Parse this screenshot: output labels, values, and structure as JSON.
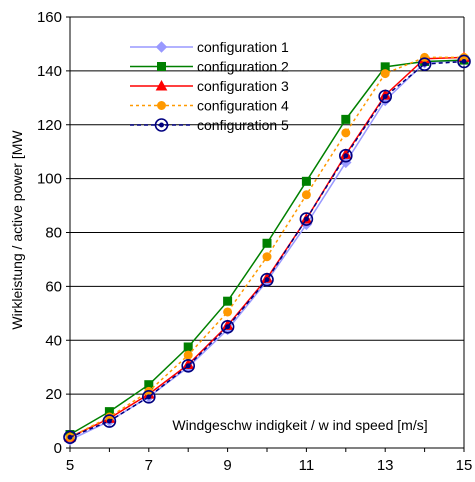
{
  "chart_data": {
    "type": "line",
    "xlabel": "Windgeschw indigkeit / w ind speed [m/s]",
    "ylabel": "Wirkleistung / active power [MW",
    "xlim": [
      5,
      15
    ],
    "ylim": [
      0,
      160
    ],
    "xticks": [
      "5",
      "7",
      "9",
      "11",
      "13",
      "15"
    ],
    "yticks": [
      "0",
      "20",
      "40",
      "60",
      "80",
      "100",
      "120",
      "140",
      "160"
    ],
    "grid": "horizontal",
    "legend_position": "top-center",
    "x": [
      5,
      6,
      7,
      8,
      9,
      10,
      11,
      12,
      13,
      14,
      15
    ],
    "series": [
      {
        "name": "configuration 1",
        "color": "#9999ff",
        "marker": "diamond",
        "dash": "solid",
        "values": [
          3,
          10,
          19,
          30,
          44,
          62,
          83,
          106,
          129,
          143,
          144
        ]
      },
      {
        "name": "configuration 2",
        "color": "#008000",
        "marker": "square",
        "dash": "solid",
        "values": [
          5,
          13.5,
          23.5,
          37.5,
          54.5,
          76,
          99,
          122,
          141.5,
          143.5,
          144
        ]
      },
      {
        "name": "configuration 3",
        "color": "#ff0000",
        "marker": "triangle",
        "dash": "solid",
        "values": [
          4,
          11,
          20,
          31,
          45.5,
          63,
          85,
          109,
          131,
          144.5,
          145
        ]
      },
      {
        "name": "configuration 4",
        "color": "#ff9900",
        "marker": "circle",
        "dash": "dotted",
        "values": [
          4,
          11.5,
          21,
          34.5,
          50.5,
          71,
          94,
          117,
          139,
          145,
          145
        ]
      },
      {
        "name": "configuration 5",
        "color": "#000080",
        "marker": "circle-open",
        "dash": "dashed",
        "values": [
          4,
          10,
          19,
          30.5,
          45,
          62.5,
          85,
          108.5,
          130.5,
          142.5,
          143.5
        ]
      }
    ]
  }
}
